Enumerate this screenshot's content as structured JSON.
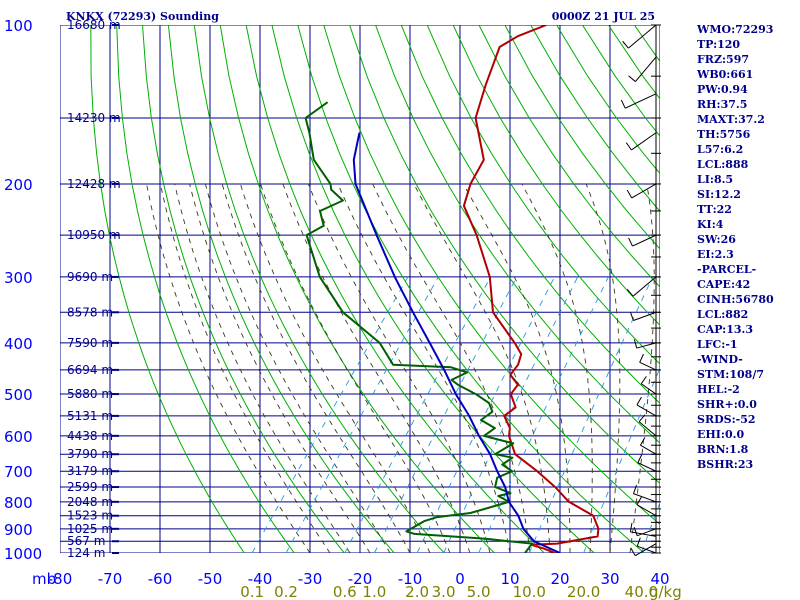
{
  "header": {
    "left": "KNKX (72293) Sounding",
    "right": "0000Z 21 JUL 25"
  },
  "chart_data": {
    "type": "line",
    "title": "KNKX (72293) Sounding",
    "subtitle": "0000Z 21 JUL 25",
    "xlabel": "",
    "ylabel": "",
    "xlim": [
      -80,
      40
    ],
    "ylim": [
      1000,
      100
    ],
    "y_scale": "log",
    "grid": true,
    "pressure_ticks": [
      "100",
      "200",
      "300",
      "400",
      "500",
      "600",
      "700",
      "800",
      "900",
      "1000"
    ],
    "pressure_unit": "mb",
    "temp_ticks": [
      "-80",
      "-70",
      "-60",
      "-50",
      "-40",
      "-30",
      "-20",
      "-10",
      "0",
      "10",
      "20",
      "30",
      "40"
    ],
    "mixing_ratio_labels": [
      "0.1",
      "0.2",
      "0.6",
      "1.0",
      "2.0",
      "3.0",
      "5.0",
      "10.0",
      "20.0",
      "40.0",
      "g/kg"
    ],
    "height_labels": [
      {
        "p": 100,
        "label": "16680 m"
      },
      {
        "p": 150,
        "label": "14230 m"
      },
      {
        "p": 200,
        "label": "12428 m"
      },
      {
        "p": 250,
        "label": "10950 m"
      },
      {
        "p": 300,
        "label": "9690 m"
      },
      {
        "p": 350,
        "label": "8578 m"
      },
      {
        "p": 400,
        "label": "7590 m"
      },
      {
        "p": 450,
        "label": "6694 m"
      },
      {
        "p": 500,
        "label": "5880 m"
      },
      {
        "p": 550,
        "label": "5131 m"
      },
      {
        "p": 600,
        "label": "4438 m"
      },
      {
        "p": 650,
        "label": "3790 m"
      },
      {
        "p": 700,
        "label": "3179 m"
      },
      {
        "p": 750,
        "label": "2599 m"
      },
      {
        "p": 800,
        "label": "2048 m"
      },
      {
        "p": 850,
        "label": "1523 m"
      },
      {
        "p": 900,
        "label": "1025 m"
      },
      {
        "p": 950,
        "label": "567 m"
      },
      {
        "p": 1000,
        "label": "124 m"
      }
    ],
    "series": [
      {
        "name": "",
        "color": "#b00000",
        "points": [
          {
            "p": 1000,
            "t": 19
          },
          {
            "p": 980,
            "t": 16
          },
          {
            "p": 965,
            "t": 13
          },
          {
            "p": 960,
            "t": 18
          },
          {
            "p": 930,
            "t": 25
          },
          {
            "p": 900,
            "t": 24
          },
          {
            "p": 850,
            "t": 21
          },
          {
            "p": 800,
            "t": 14
          },
          {
            "p": 750,
            "t": 9
          },
          {
            "p": 700,
            "t": 3
          },
          {
            "p": 650,
            "t": -4
          },
          {
            "p": 600,
            "t": -8
          },
          {
            "p": 580,
            "t": -9
          },
          {
            "p": 550,
            "t": -12
          },
          {
            "p": 530,
            "t": -11
          },
          {
            "p": 500,
            "t": -14
          },
          {
            "p": 480,
            "t": -14
          },
          {
            "p": 460,
            "t": -17
          },
          {
            "p": 440,
            "t": -17
          },
          {
            "p": 420,
            "t": -18
          },
          {
            "p": 400,
            "t": -21
          },
          {
            "p": 350,
            "t": -30
          },
          {
            "p": 300,
            "t": -36
          },
          {
            "p": 250,
            "t": -45
          },
          {
            "p": 220,
            "t": -52
          },
          {
            "p": 200,
            "t": -54
          },
          {
            "p": 180,
            "t": -55
          },
          {
            "p": 150,
            "t": -63
          },
          {
            "p": 130,
            "t": -66
          },
          {
            "p": 110,
            "t": -69
          },
          {
            "p": 105,
            "t": -67
          },
          {
            "p": 100,
            "t": -63
          }
        ]
      },
      {
        "name": "",
        "color": "#006000",
        "points": [
          {
            "p": 1000,
            "t": 13
          },
          {
            "p": 960,
            "t": 13
          },
          {
            "p": 940,
            "t": 3
          },
          {
            "p": 920,
            "t": -12
          },
          {
            "p": 910,
            "t": -14
          },
          {
            "p": 890,
            "t": -13
          },
          {
            "p": 870,
            "t": -12
          },
          {
            "p": 855,
            "t": -10
          },
          {
            "p": 840,
            "t": -4
          },
          {
            "p": 820,
            "t": -1
          },
          {
            "p": 800,
            "t": 2
          },
          {
            "p": 780,
            "t": -1
          },
          {
            "p": 770,
            "t": 1
          },
          {
            "p": 750,
            "t": -3
          },
          {
            "p": 720,
            "t": -4
          },
          {
            "p": 700,
            "t": -2
          },
          {
            "p": 680,
            "t": -5
          },
          {
            "p": 660,
            "t": -4
          },
          {
            "p": 650,
            "t": -8
          },
          {
            "p": 620,
            "t": -6
          },
          {
            "p": 600,
            "t": -13
          },
          {
            "p": 580,
            "t": -12
          },
          {
            "p": 560,
            "t": -16
          },
          {
            "p": 540,
            "t": -15
          },
          {
            "p": 520,
            "t": -17
          },
          {
            "p": 500,
            "t": -21
          },
          {
            "p": 480,
            "t": -26
          },
          {
            "p": 470,
            "t": -28
          },
          {
            "p": 455,
            "t": -26
          },
          {
            "p": 445,
            "t": -30
          },
          {
            "p": 440,
            "t": -42
          },
          {
            "p": 400,
            "t": -48
          },
          {
            "p": 350,
            "t": -60
          },
          {
            "p": 300,
            "t": -70
          },
          {
            "p": 250,
            "t": -79
          },
          {
            "p": 240,
            "t": -77
          },
          {
            "p": 225,
            "t": -80
          },
          {
            "p": 215,
            "t": -77
          },
          {
            "p": 205,
            "t": -81
          },
          {
            "p": 200,
            "t": -82
          },
          {
            "p": 180,
            "t": -89
          },
          {
            "p": 160,
            "t": -94
          },
          {
            "p": 150,
            "t": -97
          },
          {
            "p": 140,
            "t": -95
          }
        ]
      },
      {
        "name": "",
        "color": "#0000c0",
        "points": [
          {
            "p": 1000,
            "t": 20
          },
          {
            "p": 950,
            "t": 13
          },
          {
            "p": 900,
            "t": 9
          },
          {
            "p": 850,
            "t": 6
          },
          {
            "p": 800,
            "t": 2
          },
          {
            "p": 750,
            "t": -1
          },
          {
            "p": 700,
            "t": -5
          },
          {
            "p": 650,
            "t": -9
          },
          {
            "p": 600,
            "t": -14
          },
          {
            "p": 550,
            "t": -19
          },
          {
            "p": 500,
            "t": -25
          },
          {
            "p": 450,
            "t": -31
          },
          {
            "p": 400,
            "t": -38
          },
          {
            "p": 350,
            "t": -46
          },
          {
            "p": 300,
            "t": -55
          },
          {
            "p": 250,
            "t": -65
          },
          {
            "p": 200,
            "t": -77
          },
          {
            "p": 180,
            "t": -81
          },
          {
            "p": 160,
            "t": -84
          }
        ]
      }
    ]
  },
  "stats": [
    "WMO:72293",
    "TP:120",
    "FRZ:597",
    "WB0:661",
    "PW:0.94",
    "RH:37.5",
    "MAXT:37.2",
    "TH:5756",
    "L57:6.2",
    "LCL:888",
    "LI:8.5",
    "SI:12.2",
    "TT:22",
    "KI:4",
    "SW:26",
    "EI:2.3",
    "-PARCEL-",
    "CAPE:42",
    "CINH:56780",
    "LCL:882",
    "CAP:13.3",
    "LFC:-1",
    "-WIND-",
    "STM:108/7",
    "HEL:-2",
    "SHR+:0.0",
    "SRDS:-52",
    "EHI:0.0",
    "BRN:1.8",
    "BSHR:23"
  ],
  "colors": {
    "grid": "#00008b",
    "dry_adiabat": "#00b000",
    "moist_adiabat": "#3a3a1a",
    "mixing_ratio": "#2299dd",
    "axis_text": "#0000ff",
    "mixing_ratio_text": "#808000",
    "header_text": "#00008b",
    "wind": "#000000"
  }
}
